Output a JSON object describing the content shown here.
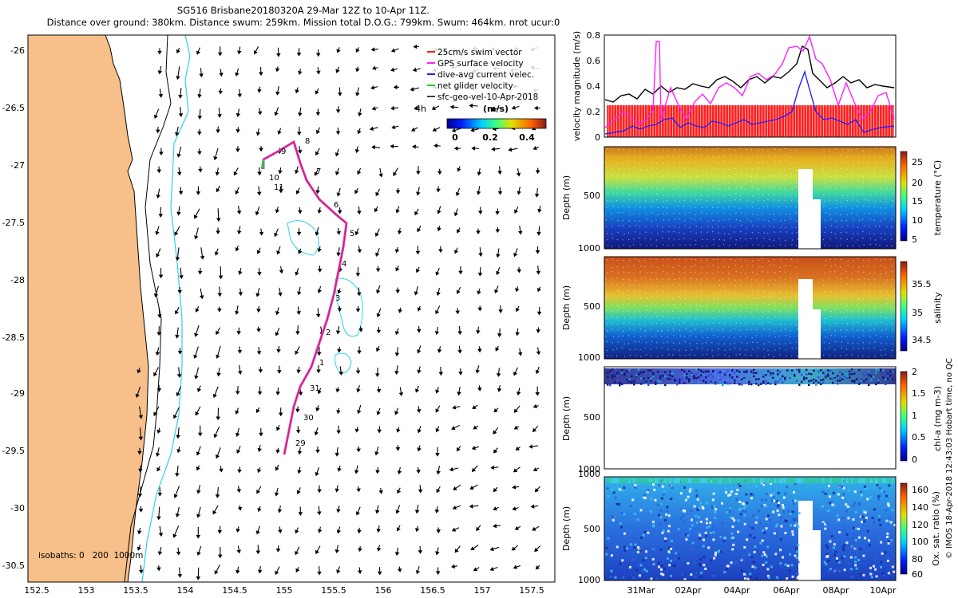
{
  "title": {
    "line1": "SG516 Brisbane20180320A 29-Mar 12Z to 10-Apr 11Z.",
    "line2": "Distance over ground: 380km. Distance swum: 259km. Mission total D.O.G.: 799km. Swum: 464km. nrot ucur:0"
  },
  "map": {
    "lon_ticks": [
      "152.5",
      "153",
      "153.5",
      "154",
      "154.5",
      "155",
      "155.5",
      "156",
      "156.5",
      "157",
      "157.5"
    ],
    "lat_ticks": [
      "-26",
      "-26.5",
      "-27",
      "-27.5",
      "-28",
      "-28.5",
      "-29",
      "-29.5",
      "-30",
      "-30.5"
    ],
    "legend": [
      {
        "label": "25cm/s swim vector",
        "color": "#ff2020"
      },
      {
        "label": "GPS surface velocity",
        "color": "#ff20ff"
      },
      {
        "label": "dive-avg current velec.",
        "color": "#2020ff"
      },
      {
        "label": "net glider velocity",
        "color": "#20d020"
      },
      {
        "label": "sfc-geo-vel-10-Apr-2018",
        "color": "#000000"
      }
    ],
    "age_label": "4h",
    "colorbar": {
      "title": "(m/s)",
      "ticks": [
        "0",
        "0.2",
        "0.4"
      ]
    },
    "isobaths_label": "isobaths: 0   200  1000m",
    "day_labels": [
      "9",
      "8",
      "7",
      "10",
      "11",
      "6",
      "5",
      "4",
      "3",
      "2",
      "1",
      "31",
      "30",
      "29"
    ]
  },
  "panels": {
    "velocity": {
      "ylabel": "velocity magnitude (m/s)",
      "yticks": [
        "0.8",
        "0.6",
        "0.4",
        "0.2",
        "0"
      ]
    },
    "temperature": {
      "ylabel": "Depth (m)",
      "yticks": [
        "500",
        "1000"
      ],
      "cblabel": "temperature (°C)",
      "cbticks": [
        "25",
        "20",
        "15",
        "10",
        "5"
      ]
    },
    "salinity": {
      "ylabel": "Depth (m)",
      "yticks": [
        "500",
        "1000"
      ],
      "cblabel": "salinity",
      "cbticks": [
        "35.5",
        "35",
        "34.5"
      ]
    },
    "chla": {
      "ylabel": "Depth (m)",
      "yticks": [
        "500",
        "1000"
      ],
      "cblabel": "chl-a (mg m-3)",
      "cbticks": [
        "2",
        "1.5",
        "1",
        "0.5",
        "0"
      ]
    },
    "oxygen": {
      "ylabel": "Depth (m)",
      "yticks": [
        "1000",
        "500",
        "1000"
      ],
      "cblabel": "Ox. sat. ratio (%)",
      "cbticks": [
        "160",
        "140",
        "120",
        "100",
        "80",
        "60"
      ]
    },
    "xticks": [
      "31Mar",
      "02Apr",
      "04Apr",
      "06Apr",
      "08Apr",
      "10Apr"
    ]
  },
  "credit": "© IMOS 18-Apr-2018 12:43:03 Hobart time, no QC"
}
